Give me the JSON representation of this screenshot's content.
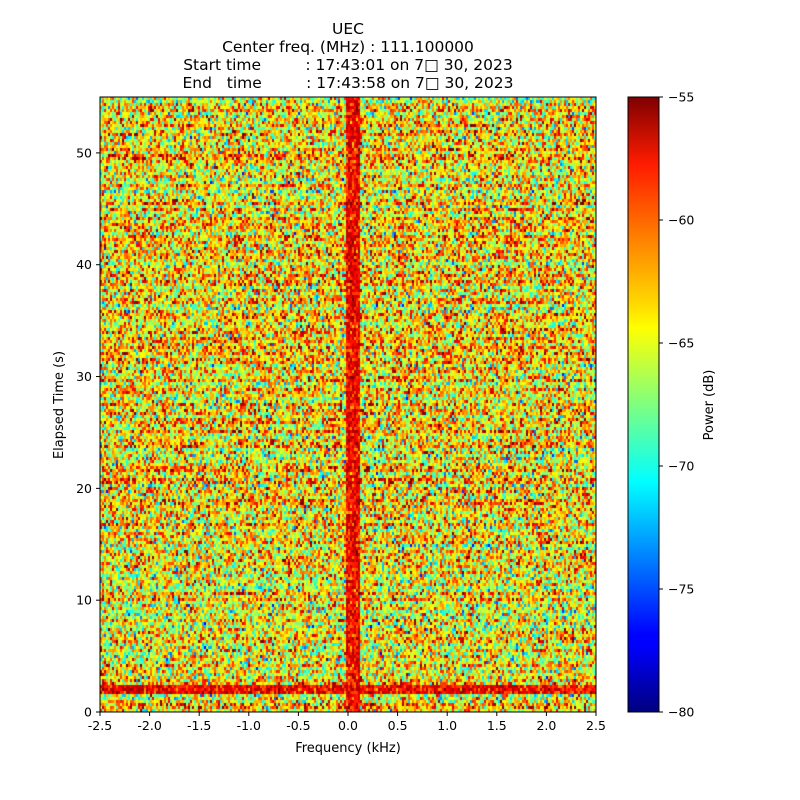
{
  "chart_data": {
    "type": "heatmap",
    "title_lines": [
      "UEC",
      "Center freq. (MHz) : 111.100000",
      "Start time         : 17:43:01 on 7□ 30, 2023",
      "End   time         : 17:43:58 on 7□ 30, 2023"
    ],
    "xlabel": "Frequency (kHz)",
    "ylabel": "Elapsed Time (s)",
    "xlim": [
      -2.5,
      2.5
    ],
    "ylim": [
      0,
      55
    ],
    "x_ticks": [
      -2.5,
      -2.0,
      -1.5,
      -1.0,
      -0.5,
      0.0,
      0.5,
      1.0,
      1.5,
      2.0,
      2.5
    ],
    "x_tick_labels": [
      "-2.5",
      "-2.0",
      "-1.5",
      "-1.0",
      "-0.5",
      "0.0",
      "0.5",
      "1.0",
      "1.5",
      "2.0",
      "2.5"
    ],
    "y_ticks": [
      0,
      10,
      20,
      30,
      40,
      50
    ],
    "y_tick_labels": [
      "0",
      "10",
      "20",
      "30",
      "40",
      "50"
    ],
    "colorbar": {
      "label": "Power (dB)",
      "range": [
        -80,
        -55
      ],
      "ticks": [
        -80,
        -75,
        -70,
        -65,
        -60,
        -55
      ],
      "tick_labels": [
        "−80",
        "−75",
        "−70",
        "−65",
        "−60",
        "−55"
      ],
      "colormap": "jet"
    },
    "features": [
      {
        "kind": "signal-band",
        "x_range": [
          -0.02,
          0.12
        ],
        "y_range": [
          0,
          55
        ],
        "level_db": -56
      },
      {
        "kind": "horizontal-burst",
        "x_range": [
          -2.5,
          2.5
        ],
        "y_range": [
          1.6,
          2.4
        ],
        "level_db": -56
      }
    ],
    "background_level_db": -64
  }
}
